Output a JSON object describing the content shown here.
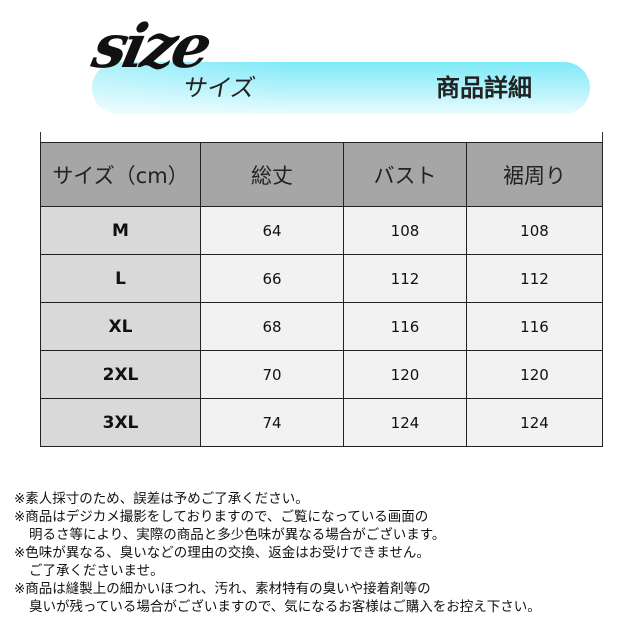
{
  "header": {
    "logo_text": "size",
    "logo_kana": "サイズ",
    "title": "商品詳細",
    "banner_color": "#7fe9f8"
  },
  "table": {
    "columns": [
      "サイズ（cm）",
      "総丈",
      "バスト",
      "裾周り"
    ],
    "rows": [
      [
        "M",
        "64",
        "108",
        "108"
      ],
      [
        "L",
        "66",
        "112",
        "112"
      ],
      [
        "XL",
        "68",
        "116",
        "116"
      ],
      [
        "2XL",
        "70",
        "120",
        "120"
      ],
      [
        "3XL",
        "74",
        "124",
        "124"
      ]
    ]
  },
  "notes": [
    {
      "text": "※素人採寸のため、誤差は予めご了承ください。",
      "indent": false
    },
    {
      "text": "※商品はデジカメ撮影をしておりますので、ご覧になっている画面の",
      "indent": false
    },
    {
      "text": "明るさ等により、実際の商品と多少色味が異なる場合がございます。",
      "indent": true
    },
    {
      "text": "※色味が異なる、臭いなどの理由の交換、返金はお受けできません。",
      "indent": false
    },
    {
      "text": "ご了承くださいませ。",
      "indent": true
    },
    {
      "text": "※商品は縫製上の細かいほつれ、汚れ、素材特有の臭いや接着剤等の",
      "indent": false
    },
    {
      "text": "臭いが残っている場合がございますので、気になるお客様はご購入をお控え下さい。",
      "indent": true
    }
  ]
}
